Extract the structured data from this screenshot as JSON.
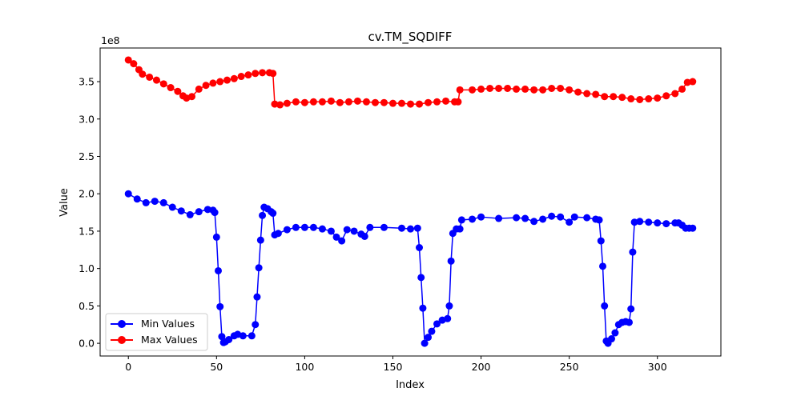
{
  "chart_data": {
    "type": "line",
    "title": "cv.TM_SQDIFF",
    "xlabel": "Index",
    "ylabel": "Value",
    "y_offset_label": "1e8",
    "xlim": [
      -16,
      336
    ],
    "ylim": [
      -0.17,
      3.95
    ],
    "x_ticks": [
      0,
      50,
      100,
      150,
      200,
      250,
      300
    ],
    "x_tick_labels": [
      "0",
      "50",
      "100",
      "150",
      "200",
      "250",
      "300"
    ],
    "y_ticks": [
      0.0,
      0.5,
      1.0,
      1.5,
      2.0,
      2.5,
      3.0,
      3.5
    ],
    "y_tick_labels": [
      "0.0",
      "0.5",
      "1.0",
      "1.5",
      "2.0",
      "2.5",
      "3.0",
      "3.5"
    ],
    "legend_position": "lower-left",
    "grid": false,
    "series": [
      {
        "name": "Min Values",
        "color": "#0000ff",
        "points": [
          [
            0,
            2.0
          ],
          [
            5,
            1.93
          ],
          [
            10,
            1.88
          ],
          [
            15,
            1.9
          ],
          [
            20,
            1.88
          ],
          [
            25,
            1.82
          ],
          [
            30,
            1.77
          ],
          [
            35,
            1.72
          ],
          [
            40,
            1.76
          ],
          [
            45,
            1.79
          ],
          [
            48,
            1.78
          ],
          [
            49,
            1.75
          ],
          [
            50,
            1.42
          ],
          [
            51,
            0.97
          ],
          [
            52,
            0.49
          ],
          [
            53,
            0.09
          ],
          [
            54,
            0.01
          ],
          [
            55,
            0.02
          ],
          [
            57,
            0.05
          ],
          [
            60,
            0.1
          ],
          [
            62,
            0.12
          ],
          [
            65,
            0.1
          ],
          [
            70,
            0.1
          ],
          [
            72,
            0.25
          ],
          [
            73,
            0.62
          ],
          [
            74,
            1.01
          ],
          [
            75,
            1.38
          ],
          [
            76,
            1.71
          ],
          [
            77,
            1.82
          ],
          [
            79,
            1.8
          ],
          [
            81,
            1.76
          ],
          [
            82,
            1.74
          ],
          [
            83,
            1.45
          ],
          [
            85,
            1.47
          ],
          [
            90,
            1.52
          ],
          [
            95,
            1.55
          ],
          [
            100,
            1.55
          ],
          [
            105,
            1.55
          ],
          [
            110,
            1.53
          ],
          [
            115,
            1.5
          ],
          [
            118,
            1.42
          ],
          [
            121,
            1.37
          ],
          [
            124,
            1.52
          ],
          [
            128,
            1.5
          ],
          [
            132,
            1.46
          ],
          [
            134,
            1.43
          ],
          [
            137,
            1.55
          ],
          [
            145,
            1.55
          ],
          [
            155,
            1.54
          ],
          [
            160,
            1.53
          ],
          [
            164,
            1.54
          ],
          [
            165,
            1.28
          ],
          [
            166,
            0.88
          ],
          [
            167,
            0.47
          ],
          [
            168,
            0.0
          ],
          [
            170,
            0.08
          ],
          [
            172,
            0.16
          ],
          [
            175,
            0.26
          ],
          [
            178,
            0.31
          ],
          [
            181,
            0.33
          ],
          [
            182,
            0.5
          ],
          [
            183,
            1.1
          ],
          [
            184,
            1.47
          ],
          [
            186,
            1.53
          ],
          [
            188,
            1.53
          ],
          [
            189,
            1.65
          ],
          [
            195,
            1.66
          ],
          [
            200,
            1.69
          ],
          [
            210,
            1.67
          ],
          [
            220,
            1.68
          ],
          [
            225,
            1.67
          ],
          [
            230,
            1.63
          ],
          [
            235,
            1.66
          ],
          [
            240,
            1.7
          ],
          [
            245,
            1.69
          ],
          [
            250,
            1.62
          ],
          [
            253,
            1.69
          ],
          [
            260,
            1.68
          ],
          [
            265,
            1.66
          ],
          [
            267,
            1.65
          ],
          [
            268,
            1.37
          ],
          [
            269,
            1.03
          ],
          [
            270,
            0.5
          ],
          [
            271,
            0.03
          ],
          [
            272,
            0.0
          ],
          [
            274,
            0.06
          ],
          [
            276,
            0.14
          ],
          [
            278,
            0.25
          ],
          [
            280,
            0.28
          ],
          [
            282,
            0.29
          ],
          [
            284,
            0.28
          ],
          [
            285,
            0.46
          ],
          [
            286,
            1.22
          ],
          [
            287,
            1.62
          ],
          [
            290,
            1.63
          ],
          [
            295,
            1.62
          ],
          [
            300,
            1.61
          ],
          [
            305,
            1.6
          ],
          [
            310,
            1.61
          ],
          [
            312,
            1.61
          ],
          [
            314,
            1.58
          ],
          [
            316,
            1.54
          ],
          [
            318,
            1.54
          ],
          [
            320,
            1.54
          ]
        ]
      },
      {
        "name": "Max Values",
        "color": "#ff0000",
        "points": [
          [
            0,
            3.79
          ],
          [
            3,
            3.74
          ],
          [
            6,
            3.66
          ],
          [
            8,
            3.6
          ],
          [
            12,
            3.56
          ],
          [
            16,
            3.52
          ],
          [
            20,
            3.47
          ],
          [
            24,
            3.42
          ],
          [
            28,
            3.37
          ],
          [
            31,
            3.31
          ],
          [
            33,
            3.28
          ],
          [
            36,
            3.3
          ],
          [
            40,
            3.4
          ],
          [
            44,
            3.45
          ],
          [
            48,
            3.48
          ],
          [
            52,
            3.5
          ],
          [
            56,
            3.52
          ],
          [
            60,
            3.54
          ],
          [
            64,
            3.57
          ],
          [
            68,
            3.59
          ],
          [
            72,
            3.61
          ],
          [
            76,
            3.62
          ],
          [
            80,
            3.62
          ],
          [
            82,
            3.61
          ],
          [
            83,
            3.2
          ],
          [
            86,
            3.19
          ],
          [
            90,
            3.21
          ],
          [
            95,
            3.23
          ],
          [
            100,
            3.22
          ],
          [
            105,
            3.23
          ],
          [
            110,
            3.23
          ],
          [
            115,
            3.24
          ],
          [
            120,
            3.22
          ],
          [
            125,
            3.23
          ],
          [
            130,
            3.24
          ],
          [
            135,
            3.23
          ],
          [
            140,
            3.22
          ],
          [
            145,
            3.22
          ],
          [
            150,
            3.21
          ],
          [
            155,
            3.21
          ],
          [
            160,
            3.2
          ],
          [
            165,
            3.2
          ],
          [
            170,
            3.22
          ],
          [
            175,
            3.23
          ],
          [
            180,
            3.24
          ],
          [
            185,
            3.23
          ],
          [
            187,
            3.23
          ],
          [
            188,
            3.39
          ],
          [
            195,
            3.39
          ],
          [
            200,
            3.4
          ],
          [
            205,
            3.41
          ],
          [
            210,
            3.41
          ],
          [
            215,
            3.41
          ],
          [
            220,
            3.4
          ],
          [
            225,
            3.4
          ],
          [
            230,
            3.39
          ],
          [
            235,
            3.39
          ],
          [
            240,
            3.41
          ],
          [
            245,
            3.41
          ],
          [
            250,
            3.39
          ],
          [
            255,
            3.36
          ],
          [
            260,
            3.34
          ],
          [
            265,
            3.33
          ],
          [
            270,
            3.3
          ],
          [
            275,
            3.3
          ],
          [
            280,
            3.29
          ],
          [
            285,
            3.27
          ],
          [
            290,
            3.26
          ],
          [
            295,
            3.27
          ],
          [
            300,
            3.28
          ],
          [
            305,
            3.31
          ],
          [
            310,
            3.34
          ],
          [
            314,
            3.4
          ],
          [
            317,
            3.49
          ],
          [
            320,
            3.5
          ]
        ]
      }
    ]
  }
}
